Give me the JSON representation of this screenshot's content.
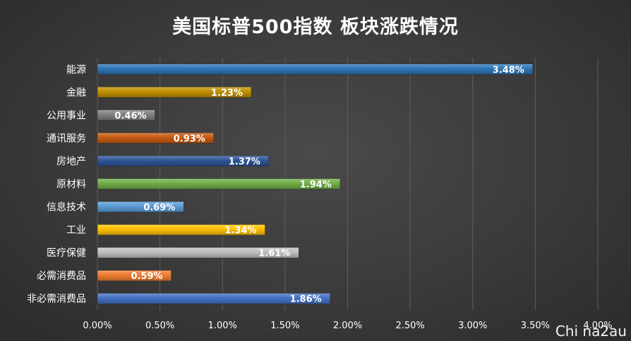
{
  "title": "美国标普500指数 板块涨跌情况",
  "watermark": "Chi na2au",
  "chart_data": {
    "type": "bar",
    "orientation": "horizontal",
    "title": "美国标普500指数 板块涨跌情况",
    "xlabel": "",
    "ylabel": "",
    "xlim": [
      0,
      4.0
    ],
    "x_ticks": [
      "0.00%",
      "0.50%",
      "1.00%",
      "1.50%",
      "2.00%",
      "2.50%",
      "3.00%",
      "3.50%",
      "4.00%"
    ],
    "grid": "vertical",
    "categories": [
      "能源",
      "金融",
      "公用事业",
      "通讯服务",
      "房地产",
      "原材料",
      "信息技术",
      "工业",
      "医疗保健",
      "必需消费品",
      "非必需消费品"
    ],
    "values": [
      3.48,
      1.23,
      0.46,
      0.93,
      1.37,
      1.94,
      0.69,
      1.34,
      1.61,
      0.59,
      1.86
    ],
    "labels": [
      "3.48%",
      "1.23%",
      "0.46%",
      "0.93%",
      "1.37%",
      "1.94%",
      "0.69%",
      "1.34%",
      "1.61%",
      "0.59%",
      "1.86%"
    ],
    "colors": [
      "#2e75b6",
      "#bf9000",
      "#7f7f7f",
      "#c55a11",
      "#2f5597",
      "#70ad47",
      "#5b9bd5",
      "#ffc000",
      "#bfbfbf",
      "#ed7d31",
      "#4472c4"
    ]
  }
}
